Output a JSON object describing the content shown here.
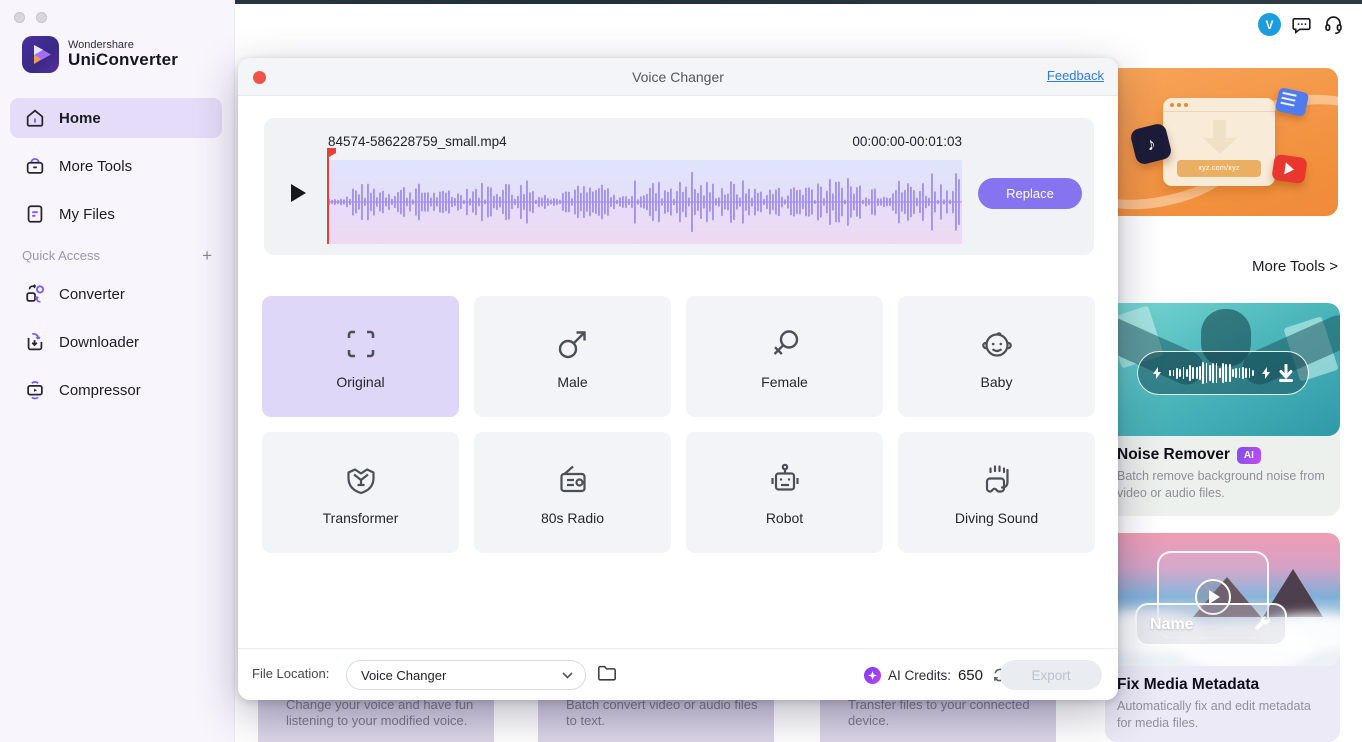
{
  "window": {
    "traffic_lights": 2
  },
  "sidebar": {
    "brand": {
      "line1": "Wondershare",
      "line2": "UniConverter"
    },
    "items": [
      {
        "label": "Home",
        "icon": "home-icon",
        "selected": true
      },
      {
        "label": "More Tools",
        "icon": "more-tools-icon",
        "selected": false
      },
      {
        "label": "My Files",
        "icon": "my-files-icon",
        "selected": false
      }
    ],
    "quick_access": {
      "label": "Quick Access",
      "add_icon": "plus-icon",
      "add_symbol": "+"
    },
    "quick_items": [
      {
        "label": "Converter",
        "icon": "converter-icon"
      },
      {
        "label": "Downloader",
        "icon": "downloader-icon"
      },
      {
        "label": "Compressor",
        "icon": "compressor-icon"
      }
    ]
  },
  "topbar": {
    "avatar_initial": "V",
    "icons": [
      "chat-icon",
      "headset-icon"
    ]
  },
  "modal": {
    "title": "Voice Changer",
    "feedback_label": "Feedback",
    "player": {
      "filename": "84574-586228759_small.mp4",
      "time_range": "00:00:00-00:01:03",
      "replace_label": "Replace",
      "play_icon": "play-icon"
    },
    "voices": [
      {
        "label": "Original",
        "icon": "original-icon",
        "selected": true
      },
      {
        "label": "Male",
        "icon": "male-icon",
        "selected": false
      },
      {
        "label": "Female",
        "icon": "female-icon",
        "selected": false
      },
      {
        "label": "Baby",
        "icon": "baby-icon",
        "selected": false
      },
      {
        "label": "Transformer",
        "icon": "transformer-icon",
        "selected": false
      },
      {
        "label": "80s Radio",
        "icon": "radio-icon",
        "selected": false
      },
      {
        "label": "Robot",
        "icon": "robot-icon",
        "selected": false
      },
      {
        "label": "Diving Sound",
        "icon": "diving-icon",
        "selected": false
      }
    ],
    "footer": {
      "file_location_label": "File Location:",
      "location_value": "Voice Changer",
      "folder_icon": "folder-icon",
      "ai_credits_label": "AI Credits:",
      "ai_credits_value": "650",
      "refresh_icon": "refresh-icon",
      "cart_icon": "cart-icon",
      "export_label": "Export"
    }
  },
  "right_panel": {
    "banner": {
      "url_text": "xyz.com/xyz",
      "icons": [
        "tiktok-icon",
        "youtube-icon",
        "film-icon",
        "download-arrow-icon"
      ]
    },
    "more_tools_label": "More Tools >",
    "cards": [
      {
        "title": "Noise Remover",
        "badge": "AI",
        "description": "Batch remove background noise from video or audio files."
      },
      {
        "title": "Fix Media Metadata",
        "badge": "",
        "description": "Automatically fix and edit metadata for media files.",
        "overlay_label": "Name"
      }
    ]
  },
  "background_cards": [
    {
      "text": "Change your voice and have fun listening to your modified voice."
    },
    {
      "text": "Batch convert video or audio files to text."
    },
    {
      "text": "Transfer files to your connected device."
    }
  ],
  "colors": {
    "accent_purple": "#7b5cf5",
    "replace_button": "#8673f0",
    "selected_tile": "#ded7f8",
    "banner_orange": "#f2913f",
    "avatar_blue": "#1b9ddf",
    "feedback_link": "#2b7ce0",
    "ai_badge_from": "#7d4df2",
    "ai_badge_to": "#c44bf0",
    "playhead_red": "#e8413c",
    "waveform_bar": "#9d8bef"
  }
}
